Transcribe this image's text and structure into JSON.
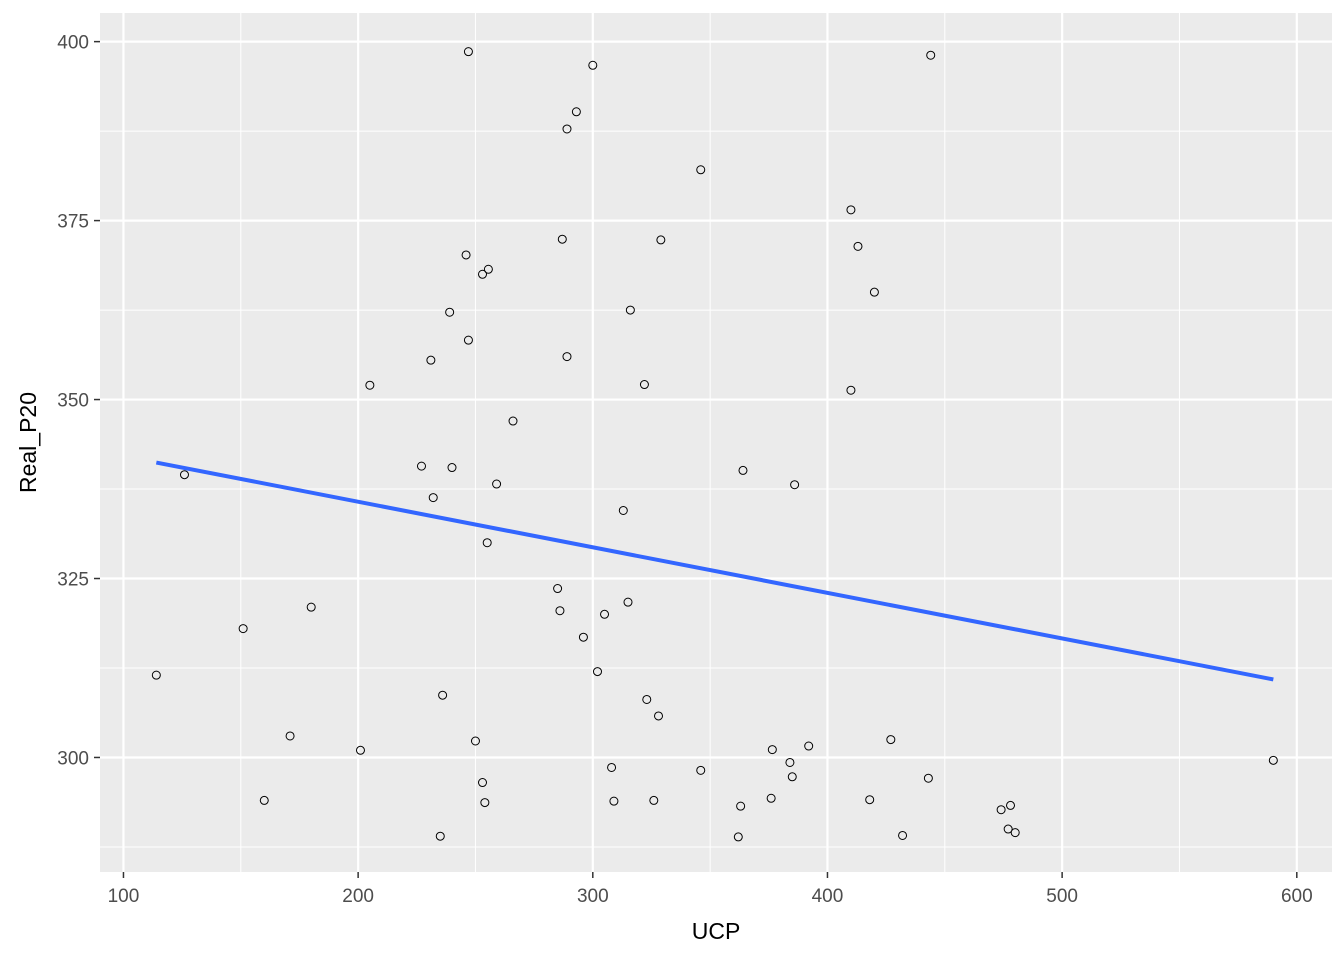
{
  "chart_data": {
    "type": "scatter",
    "title": "",
    "xlabel": "UCP",
    "ylabel": "Real_P20",
    "xlim": [
      90,
      615
    ],
    "ylim": [
      284,
      404
    ],
    "x_ticks": [
      100,
      200,
      300,
      400,
      500,
      600
    ],
    "y_ticks": [
      300,
      325,
      350,
      375,
      400
    ],
    "grid": true,
    "legend": "none",
    "points": [
      {
        "x": 114,
        "y": 311.5
      },
      {
        "x": 126,
        "y": 339.5
      },
      {
        "x": 151,
        "y": 318
      },
      {
        "x": 160,
        "y": 294
      },
      {
        "x": 171,
        "y": 303
      },
      {
        "x": 180,
        "y": 321
      },
      {
        "x": 201,
        "y": 301
      },
      {
        "x": 205,
        "y": 352
      },
      {
        "x": 227,
        "y": 340.7
      },
      {
        "x": 231,
        "y": 355.5
      },
      {
        "x": 232,
        "y": 336.3
      },
      {
        "x": 235,
        "y": 289
      },
      {
        "x": 236,
        "y": 308.7
      },
      {
        "x": 239,
        "y": 362.2
      },
      {
        "x": 240,
        "y": 340.5
      },
      {
        "x": 246,
        "y": 370.2
      },
      {
        "x": 247,
        "y": 358.3
      },
      {
        "x": 247,
        "y": 398.6
      },
      {
        "x": 250,
        "y": 302.3
      },
      {
        "x": 253,
        "y": 296.5
      },
      {
        "x": 253,
        "y": 367.5
      },
      {
        "x": 254,
        "y": 293.7
      },
      {
        "x": 255,
        "y": 330
      },
      {
        "x": 255.5,
        "y": 368.2
      },
      {
        "x": 259,
        "y": 338.2
      },
      {
        "x": 266,
        "y": 347
      },
      {
        "x": 285,
        "y": 323.6
      },
      {
        "x": 286,
        "y": 320.5
      },
      {
        "x": 287,
        "y": 372.4
      },
      {
        "x": 289,
        "y": 356
      },
      {
        "x": 289,
        "y": 387.8
      },
      {
        "x": 293,
        "y": 390.2
      },
      {
        "x": 296,
        "y": 316.8
      },
      {
        "x": 300,
        "y": 396.7
      },
      {
        "x": 302,
        "y": 312
      },
      {
        "x": 305,
        "y": 320
      },
      {
        "x": 308,
        "y": 298.6
      },
      {
        "x": 309,
        "y": 293.9
      },
      {
        "x": 313,
        "y": 334.5
      },
      {
        "x": 315,
        "y": 321.7
      },
      {
        "x": 316,
        "y": 362.5
      },
      {
        "x": 322,
        "y": 352.1
      },
      {
        "x": 323,
        "y": 308.1
      },
      {
        "x": 326,
        "y": 294
      },
      {
        "x": 328,
        "y": 305.8
      },
      {
        "x": 329,
        "y": 372.3
      },
      {
        "x": 346,
        "y": 382.1
      },
      {
        "x": 346,
        "y": 298.2
      },
      {
        "x": 362,
        "y": 288.9
      },
      {
        "x": 363,
        "y": 293.2
      },
      {
        "x": 364,
        "y": 340.1
      },
      {
        "x": 376,
        "y": 294.3
      },
      {
        "x": 376.5,
        "y": 301.1
      },
      {
        "x": 384,
        "y": 299.3
      },
      {
        "x": 385,
        "y": 297.3
      },
      {
        "x": 386,
        "y": 338.1
      },
      {
        "x": 392,
        "y": 301.6
      },
      {
        "x": 410,
        "y": 376.5
      },
      {
        "x": 410,
        "y": 351.3
      },
      {
        "x": 413,
        "y": 371.4
      },
      {
        "x": 418,
        "y": 294.1
      },
      {
        "x": 420,
        "y": 365
      },
      {
        "x": 427,
        "y": 302.5
      },
      {
        "x": 432,
        "y": 289.1
      },
      {
        "x": 443,
        "y": 297.1
      },
      {
        "x": 444,
        "y": 398.1
      },
      {
        "x": 474,
        "y": 292.7
      },
      {
        "x": 477,
        "y": 290
      },
      {
        "x": 478,
        "y": 293.3
      },
      {
        "x": 480,
        "y": 289.5
      },
      {
        "x": 590,
        "y": 299.6
      }
    ],
    "series": [
      {
        "type": "line",
        "x": [
          114,
          590
        ],
        "y": [
          341.2,
          310.9
        ],
        "color": "#3366FF"
      }
    ]
  }
}
